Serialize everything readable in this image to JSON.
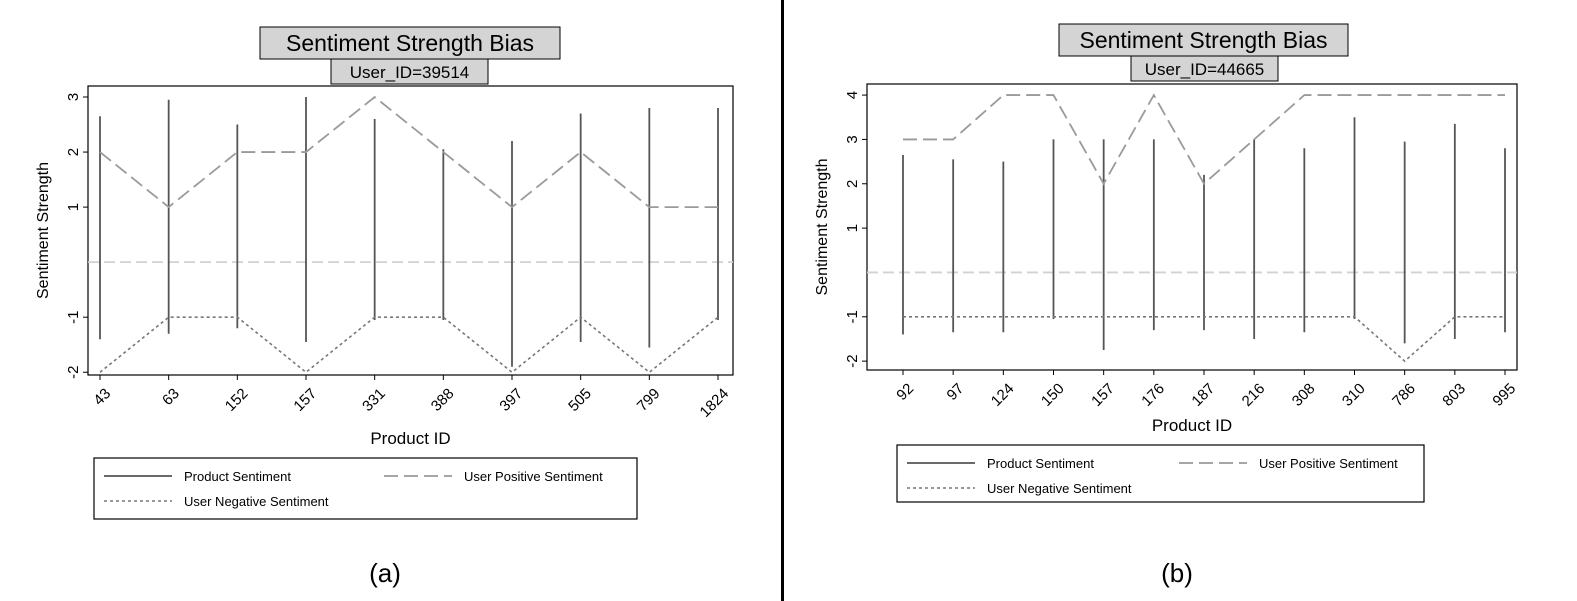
{
  "chart_data": [
    {
      "type": "line",
      "title": "Sentiment Strength Bias",
      "subtitle": "User_ID=39514",
      "xlabel": "Product ID",
      "ylabel": "Sentiment Strength",
      "panel_label": "(a)",
      "categories": [
        "43",
        "63",
        "152",
        "157",
        "331",
        "388",
        "397",
        "505",
        "799",
        "1824"
      ],
      "y_ticks": [
        3,
        2,
        1,
        -1,
        -2
      ],
      "ylim": [
        -2.05,
        3.2
      ],
      "baseline": 0,
      "product_sentiment": {
        "name": "Product Sentiment",
        "low": [
          -1.4,
          -1.3,
          -1.2,
          -1.45,
          -1.05,
          -1.05,
          -1.9,
          -1.45,
          -1.55,
          -1.05
        ],
        "high": [
          2.65,
          2.95,
          2.5,
          3.0,
          2.6,
          2.05,
          2.2,
          2.7,
          2.8,
          2.8
        ]
      },
      "user_positive": {
        "name": "User Positive Sentiment",
        "values": [
          2,
          1,
          2,
          2,
          3,
          2,
          1,
          2,
          1,
          1
        ]
      },
      "user_negative": {
        "name": "User Negative Sentiment",
        "values": [
          -2,
          -1,
          -1,
          -2,
          -1,
          -1,
          -2,
          -1,
          -2,
          -1
        ]
      },
      "legend_position": "bottom"
    },
    {
      "type": "line",
      "title": "Sentiment Strength Bias",
      "subtitle": "User_ID=44665",
      "xlabel": "Product ID",
      "ylabel": "Sentiment Strength",
      "panel_label": "(b)",
      "categories": [
        "92",
        "97",
        "124",
        "150",
        "157",
        "176",
        "187",
        "216",
        "308",
        "310",
        "786",
        "803",
        "995"
      ],
      "y_ticks": [
        4,
        3,
        2,
        1,
        -1,
        -2
      ],
      "ylim": [
        -2.2,
        4.25
      ],
      "baseline": 0,
      "product_sentiment": {
        "name": "Product Sentiment",
        "low": [
          -1.4,
          -1.35,
          -1.35,
          -1.05,
          -1.75,
          -1.3,
          -1.3,
          -1.5,
          -1.35,
          -1.05,
          -1.6,
          -1.5,
          -1.35
        ],
        "high": [
          2.65,
          2.55,
          2.5,
          3.0,
          3.0,
          3.0,
          2.2,
          3.0,
          2.8,
          3.5,
          2.95,
          3.35,
          2.8
        ]
      },
      "user_positive": {
        "name": "User Positive Sentiment",
        "values": [
          3,
          3,
          4,
          4,
          2,
          4,
          2,
          3,
          4,
          4,
          4,
          4,
          4
        ]
      },
      "user_negative": {
        "name": "User Negative Sentiment",
        "values": [
          -1,
          -1,
          -1,
          -1,
          -1,
          -1,
          -1,
          -1,
          -1,
          -1,
          -2,
          -1,
          -1
        ]
      },
      "legend_position": "bottom"
    }
  ]
}
